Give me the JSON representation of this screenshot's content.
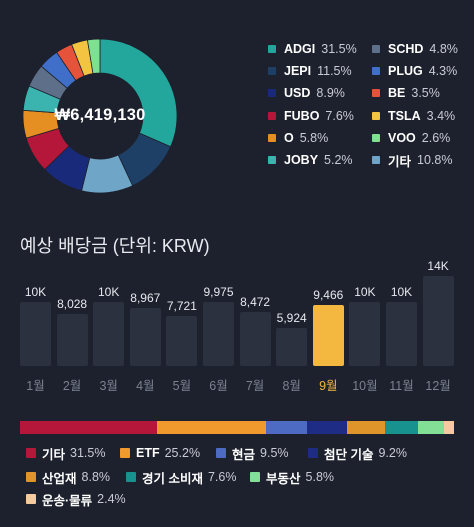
{
  "portfolio": {
    "total": "₩6,419,130",
    "holdings": [
      {
        "name": "ADGI",
        "pct": "31.5%",
        "value": 31.5,
        "color": "#23a79d"
      },
      {
        "name": "JEPI",
        "pct": "11.5%",
        "value": 11.5,
        "color": "#1e4066"
      },
      {
        "name": "USD",
        "pct": "8.9%",
        "value": 8.9,
        "color": "#1a2a7a"
      },
      {
        "name": "FUBO",
        "pct": "7.6%",
        "value": 7.6,
        "color": "#b5173a"
      },
      {
        "name": "O",
        "pct": "5.8%",
        "value": 5.8,
        "color": "#e58f22"
      },
      {
        "name": "JOBY",
        "pct": "5.2%",
        "value": 5.2,
        "color": "#3bb3ae"
      },
      {
        "name": "SCHD",
        "pct": "4.8%",
        "value": 4.8,
        "color": "#5e6f8a"
      },
      {
        "name": "PLUG",
        "pct": "4.3%",
        "value": 4.3,
        "color": "#3f6fc8"
      },
      {
        "name": "BE",
        "pct": "3.5%",
        "value": 3.5,
        "color": "#e6533b"
      },
      {
        "name": "TSLA",
        "pct": "3.4%",
        "value": 3.4,
        "color": "#f3c441"
      },
      {
        "name": "VOO",
        "pct": "2.6%",
        "value": 2.6,
        "color": "#7fe08f"
      },
      {
        "name": "기타",
        "pct": "10.8%",
        "value": 10.8,
        "color": "#6fa6c8"
      }
    ],
    "donut_order": [
      "ADGI",
      "JEPI",
      "기타",
      "USD",
      "FUBO",
      "O",
      "JOBY",
      "SCHD",
      "PLUG",
      "BE",
      "TSLA",
      "VOO"
    ]
  },
  "dividends": {
    "title": "예상 배당금 (단위: KRW)",
    "highlight_month": "9월",
    "chart_data": {
      "type": "bar",
      "categories": [
        "1월",
        "2월",
        "3월",
        "4월",
        "5월",
        "6월",
        "7월",
        "8월",
        "9월",
        "10월",
        "11월",
        "12월"
      ],
      "values": [
        10000,
        8028,
        10000,
        8967,
        7721,
        9975,
        8472,
        5924,
        9466,
        10000,
        10000,
        14000
      ],
      "labels": [
        "10K",
        "8,028",
        "10K",
        "8,967",
        "7,721",
        "9,975",
        "8,472",
        "5,924",
        "9,466",
        "10K",
        "10K",
        "14K"
      ],
      "ylim": [
        0,
        14000
      ]
    }
  },
  "sectors": [
    {
      "name": "기타",
      "pct": "31.5%",
      "value": 31.5,
      "color": "#b5173a"
    },
    {
      "name": "ETF",
      "pct": "25.2%",
      "value": 25.2,
      "color": "#f09a2e"
    },
    {
      "name": "현금",
      "pct": "9.5%",
      "value": 9.5,
      "color": "#4e6bc4"
    },
    {
      "name": "첨단 기술",
      "pct": "9.2%",
      "value": 9.2,
      "color": "#1e2c86"
    },
    {
      "name": "산업재",
      "pct": "8.8%",
      "value": 8.8,
      "color": "#e0952a"
    },
    {
      "name": "경기 소비재",
      "pct": "7.6%",
      "value": 7.6,
      "color": "#17928e"
    },
    {
      "name": "부동산",
      "pct": "5.8%",
      "value": 5.8,
      "color": "#82df95"
    },
    {
      "name": "운송·물류",
      "pct": "2.4%",
      "value": 2.4,
      "color": "#f6c9a0"
    }
  ]
}
